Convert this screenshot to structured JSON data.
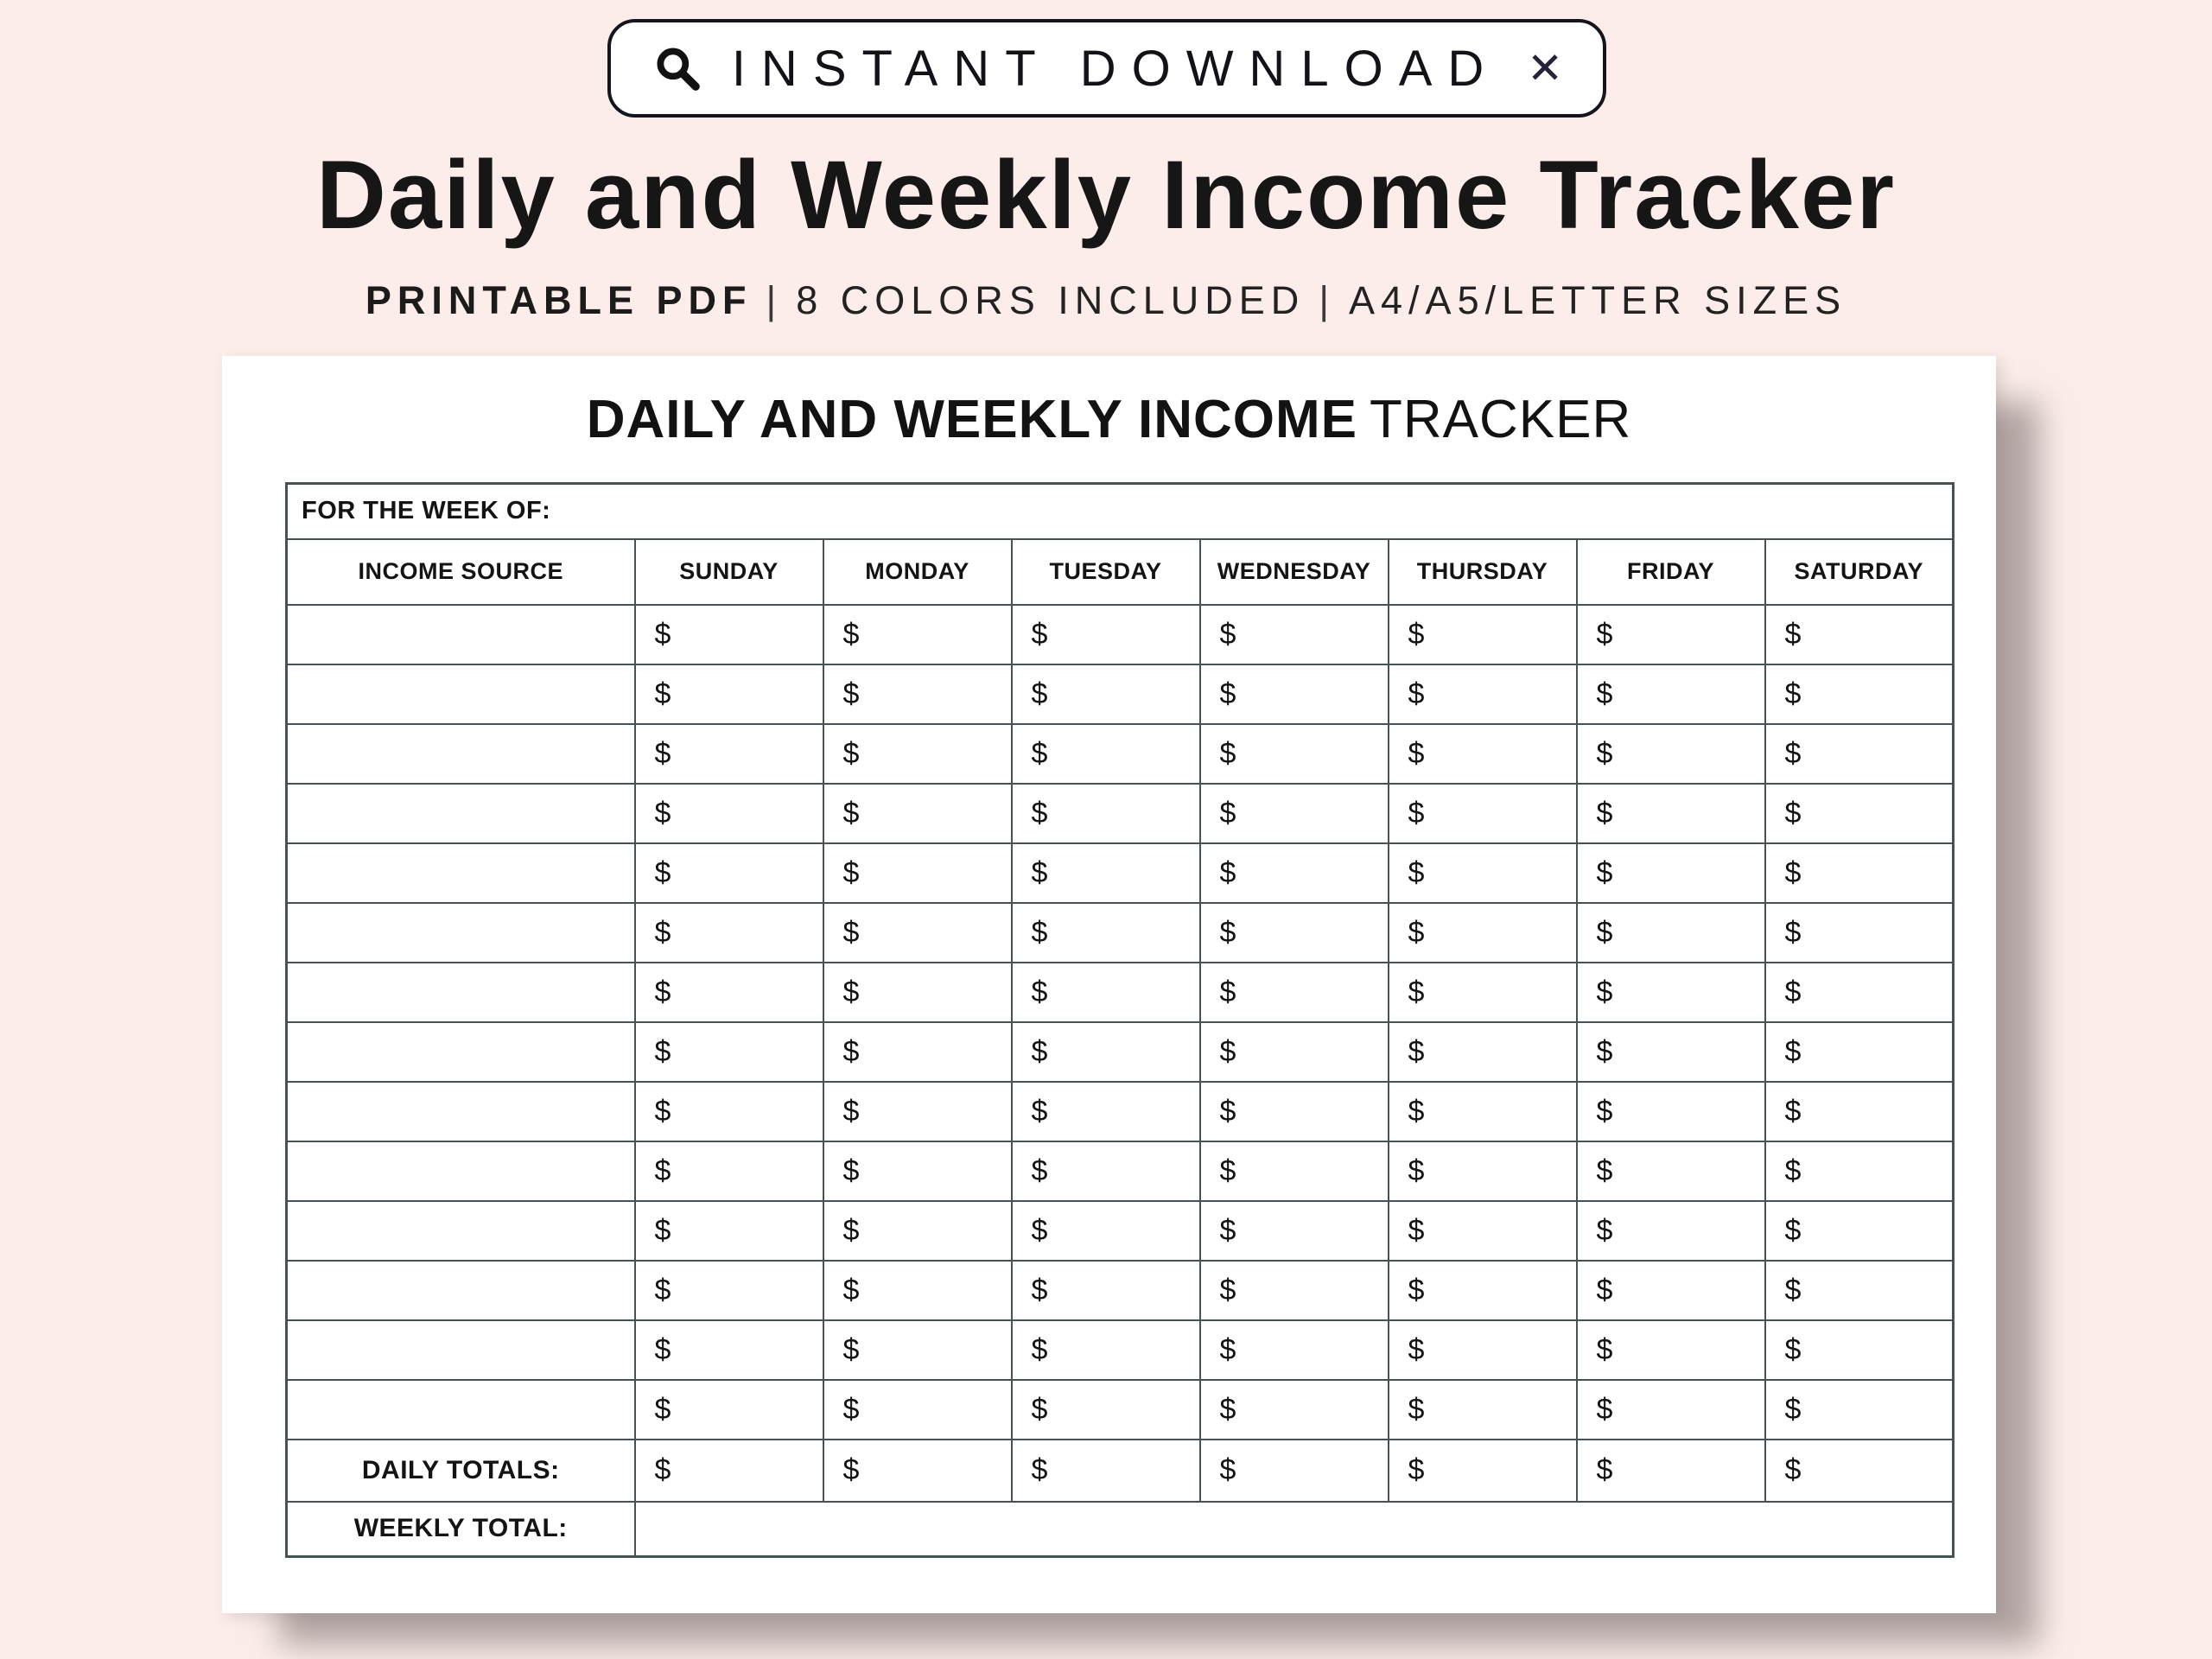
{
  "banner": {
    "label": "INSTANT DOWNLOAD",
    "close_glyph": "✕",
    "search_icon": "magnifying-glass-icon"
  },
  "header": {
    "title": "Daily and Weekly Income Tracker",
    "subtitle_bold": "PRINTABLE PDF",
    "separator": "|",
    "subtitle_colors": "8 COLORS INCLUDED",
    "subtitle_sizes": "A4/A5/LETTER SIZES"
  },
  "sheet": {
    "heading_bold": "DAILY AND WEEKLY INCOME",
    "heading_light": "TRACKER"
  },
  "table": {
    "week_of_label": "FOR THE WEEK OF:",
    "columns": [
      "INCOME SOURCE",
      "SUNDAY",
      "MONDAY",
      "TUESDAY",
      "WEDNESDAY",
      "THURSDAY",
      "FRIDAY",
      "SATURDAY"
    ],
    "blank_row_count": 14,
    "currency_symbol": "$",
    "daily_totals_label": "DAILY TOTALS:",
    "weekly_total_label": "WEEKLY TOTAL:"
  },
  "colors": {
    "background": "#fcedea",
    "paper": "#ffffff",
    "table_border": "#475256",
    "text": "#141414",
    "pill_border": "#15151d",
    "shadow": "rgba(115,105,103,0.55)"
  }
}
